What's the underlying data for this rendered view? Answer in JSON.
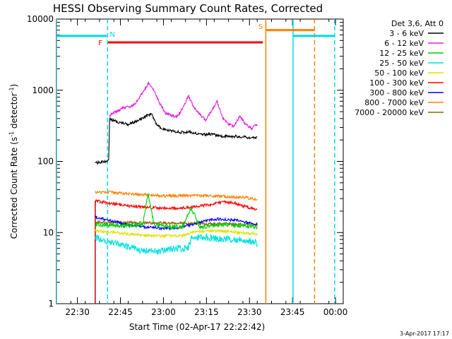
{
  "chart_data": {
    "type": "line",
    "title": "HESSI Observing Summary Count Rates, Corrected",
    "xlabel": "Start Time (02-Apr-17 22:22:42)",
    "ylabel": "Corrected Count Rate (s⁻¹ detector⁻¹)",
    "ylabel_parts": [
      "Corrected Count Rate (s",
      "-1",
      " detector",
      "-1",
      ")"
    ],
    "yscale": "log",
    "ylim": [
      1,
      10000
    ],
    "xlim_minutes_after_22_22_42": [
      0,
      100
    ],
    "xtick_labels": [
      "22:30",
      "22:45",
      "23:00",
      "23:15",
      "23:30",
      "23:45",
      "00:00"
    ],
    "xtick_minutes": [
      7.3,
      22.3,
      37.3,
      52.3,
      67.3,
      82.3,
      97.3
    ],
    "ytick_labels": [
      "1",
      "10",
      "100",
      "1000",
      "10000"
    ],
    "ytick_values": [
      1,
      10,
      100,
      1000,
      10000
    ],
    "ytick_minor_values": [
      2,
      3,
      4,
      5,
      6,
      7,
      8,
      9,
      20,
      30,
      40,
      50,
      60,
      70,
      80,
      90,
      200,
      300,
      400,
      500,
      600,
      700,
      800,
      900,
      2000,
      3000,
      4000,
      5000,
      6000,
      7000,
      8000,
      9000
    ],
    "legend_header": "Det 3,6, Att 0",
    "legend_position": "right",
    "footer_date": "3-Apr-2017 17:17",
    "series": [
      {
        "name": "3 - 6 keV",
        "color": "#000000",
        "data_start": 13.5,
        "data_end": 70,
        "x": [
          13.5,
          17,
          18.2,
          18.5,
          20,
          25,
          30,
          33,
          35,
          37,
          40,
          43,
          47,
          50,
          54,
          58,
          62,
          66,
          70
        ],
        "y": [
          95,
          100,
          105,
          400,
          370,
          330,
          400,
          470,
          330,
          280,
          270,
          255,
          260,
          240,
          240,
          225,
          225,
          220,
          215
        ]
      },
      {
        "name": "6 - 12 keV",
        "color": "#e020e0",
        "data_start": 18.5,
        "data_end": 70,
        "x": [
          18.5,
          20,
          23,
          27,
          29,
          31,
          32,
          34,
          36,
          38,
          40,
          42,
          44,
          46,
          48,
          50,
          52,
          54,
          56,
          58,
          60,
          62,
          64,
          66,
          68,
          70
        ],
        "y": [
          440,
          480,
          560,
          620,
          800,
          1050,
          1250,
          980,
          650,
          480,
          440,
          420,
          560,
          830,
          560,
          460,
          380,
          500,
          700,
          400,
          330,
          310,
          440,
          330,
          290,
          330
        ]
      },
      {
        "name": "12 - 25 keV",
        "color": "#00cc00",
        "data_start": 13.5,
        "data_end": 70,
        "x": [
          13.5,
          20,
          25,
          30,
          32,
          34,
          38,
          44,
          47,
          50,
          55,
          60,
          65,
          70
        ],
        "y": [
          13,
          12.5,
          12.5,
          13,
          35,
          13,
          12,
          12,
          22,
          12,
          12.5,
          13,
          12.5,
          12
        ]
      },
      {
        "name": "25 - 50 keV",
        "color": "#00e0e0",
        "data_start": 13.5,
        "data_end": 70,
        "x": [
          13.5,
          18,
          24,
          30,
          36,
          42,
          46,
          47,
          52,
          58,
          64,
          68,
          70
        ],
        "y": [
          8.5,
          7.5,
          6.5,
          5.5,
          5.5,
          6,
          6,
          8.5,
          8.5,
          8,
          8,
          7.5,
          7
        ]
      },
      {
        "name": "50 - 100 keV",
        "color": "#e0e000",
        "data_start": 13.5,
        "data_end": 70,
        "x": [
          13.5,
          20,
          26,
          32,
          38,
          44,
          47,
          52,
          58,
          64,
          70
        ],
        "y": [
          10.5,
          10,
          9.5,
          9,
          9,
          9,
          10,
          10.5,
          10.5,
          10,
          9.5
        ]
      },
      {
        "name": "100 - 300 keV",
        "color": "#ff0000",
        "data_start": 13.5,
        "data_end": 70,
        "x": [
          13.5,
          18,
          24,
          30,
          36,
          42,
          48,
          54,
          58,
          62,
          66,
          70
        ],
        "y": [
          28,
          26,
          24,
          23,
          22,
          22,
          23,
          25,
          27,
          26,
          23,
          21
        ]
      },
      {
        "name": "300 - 800 keV",
        "color": "#0000ff",
        "data_start": 13.5,
        "data_end": 70,
        "x": [
          13.5,
          18,
          24,
          30,
          36,
          42,
          46,
          50,
          56,
          62,
          66,
          70
        ],
        "y": [
          16.5,
          15,
          13,
          12,
          11.5,
          11.5,
          12.5,
          14,
          15.5,
          15,
          14,
          13
        ]
      },
      {
        "name": "800 - 7000 keV",
        "color": "#ff8000",
        "data_start": 13.5,
        "data_end": 70,
        "x": [
          13.5,
          18,
          24,
          30,
          36,
          42,
          48,
          54,
          60,
          66,
          70
        ],
        "y": [
          37,
          37,
          35,
          34,
          33,
          33,
          33,
          33,
          32,
          31,
          29
        ]
      },
      {
        "name": "7000 - 20000 keV",
        "color": "#8b6508",
        "data_start": 13.5,
        "data_end": 70,
        "x": [
          13.5,
          70
        ],
        "y": [
          14,
          13
        ]
      }
    ],
    "flags": [
      {
        "label": "N",
        "color": "#00d8e8",
        "style": "solid",
        "x": [
          0,
          17.5
        ],
        "y": 5800
      },
      {
        "label": "N",
        "color": "#00d8e8",
        "style": "solid",
        "x": [
          82.5,
          97
        ],
        "y": 5800
      },
      {
        "label": "F",
        "color": "#ff0000",
        "style": "solid",
        "x": [
          18,
          72
        ],
        "y": 4700
      },
      {
        "label": "S",
        "color": "#ff8000",
        "style": "solid",
        "x": [
          73,
          90
        ],
        "y": 7000
      }
    ],
    "flag_labels": [
      {
        "text": "N",
        "color": "#00d8e8",
        "x": 19.5,
        "y": 6200
      },
      {
        "text": "F",
        "color": "#ff0000",
        "x": 15.3,
        "y": 4700
      },
      {
        "text": "S",
        "color": "#ff8000",
        "x": 71.2,
        "y": 8000
      }
    ],
    "vertical_lines": [
      {
        "x": 0,
        "color": "#00d8e8",
        "dash": false
      },
      {
        "x": 17.8,
        "color": "#00d8e8",
        "dash": true
      },
      {
        "x": 73,
        "color": "#ff8000",
        "dash": false
      },
      {
        "x": 82.5,
        "color": "#00d8e8",
        "dash": false
      },
      {
        "x": 90,
        "color": "#ff8000",
        "dash": true
      },
      {
        "x": 97,
        "color": "#00d8e8",
        "dash": true
      }
    ],
    "attenuator_drop": {
      "x": 13.5,
      "color": "#cc0000",
      "from": 1,
      "to": 28
    }
  }
}
